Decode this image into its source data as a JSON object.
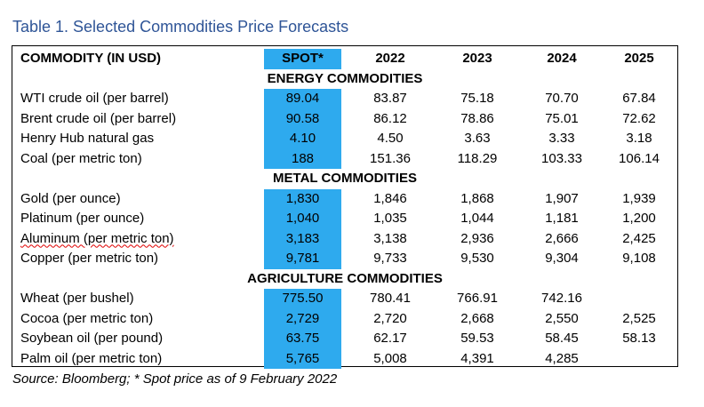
{
  "title": "Table 1. Selected Commodities Price Forecasts",
  "headers": [
    "COMMODITY (IN USD)",
    "SPOT*",
    "2022",
    "2023",
    "2024",
    "2025"
  ],
  "sections": [
    {
      "name": "ENERGY COMMODITIES",
      "rows": [
        [
          "WTI crude oil (per barrel)",
          "89.04",
          "83.87",
          "75.18",
          "70.70",
          "67.84"
        ],
        [
          "Brent crude oil (per barrel)",
          "90.58",
          "86.12",
          "78.86",
          "75.01",
          "72.62"
        ],
        [
          "Henry Hub natural gas",
          "4.10",
          "4.50",
          "3.63",
          "3.33",
          "3.18"
        ],
        [
          "Coal (per metric ton)",
          "188",
          "151.36",
          "118.29",
          "103.33",
          "106.14"
        ]
      ]
    },
    {
      "name": "METAL COMMODITIES",
      "rows": [
        [
          "Gold (per ounce)",
          "1,830",
          "1,846",
          "1,868",
          "1,907",
          "1,939"
        ],
        [
          "Platinum (per ounce)",
          "1,040",
          "1,035",
          "1,044",
          "1,181",
          "1,200"
        ],
        [
          "Aluminum (per metric ton)",
          "3,183",
          "3,138",
          "2,936",
          "2,666",
          "2,425"
        ],
        [
          "Copper (per metric ton)",
          "9,781",
          "9,733",
          "9,530",
          "9,304",
          "9,108"
        ]
      ]
    },
    {
      "name": "AGRICULTURE COMMODITIES",
      "rows": [
        [
          "Wheat (per bushel)",
          "775.50",
          "780.41",
          "766.91",
          "742.16",
          ""
        ],
        [
          "Cocoa (per metric ton)",
          "2,729",
          "2,720",
          "2,668",
          "2,550",
          "2,525"
        ],
        [
          "Soybean oil (per pound)",
          "63.75",
          "62.17",
          "59.53",
          "58.45",
          "58.13"
        ],
        [
          "Palm oil (per metric ton)",
          "5,765",
          "5,008",
          "4,391",
          "4,285",
          ""
        ]
      ]
    }
  ],
  "source": "Source: Bloomberg; * Spot price as of 9 February 2022",
  "colors": {
    "title": "#2f5597",
    "spot_highlight": "#2eaaee"
  }
}
